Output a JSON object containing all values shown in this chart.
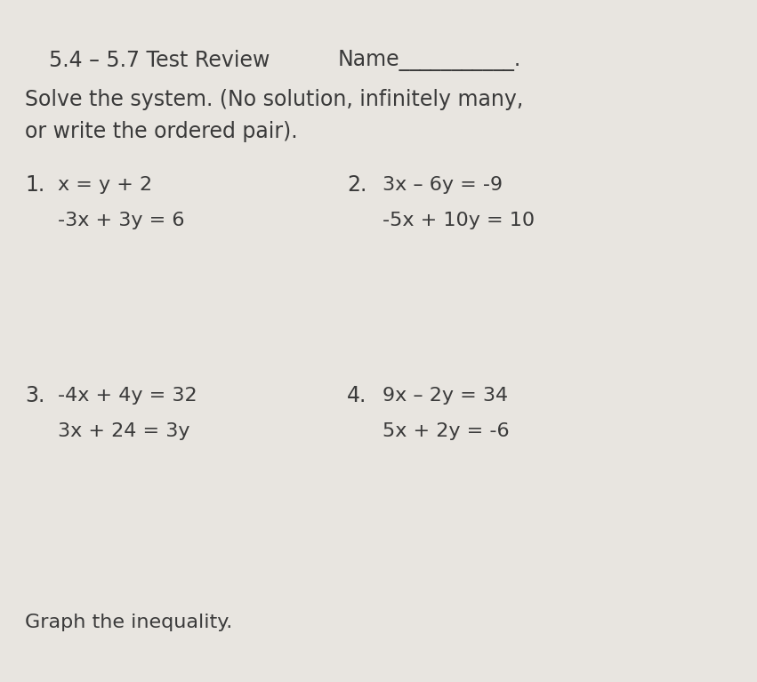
{
  "bg_color": "#e8e5e0",
  "title_part1": "5.4 – 5.7 Test Review",
  "title_part2": "Name___________.",
  "subtitle1": "Solve the system. (No solution, infinitely many,",
  "subtitle2": "or write the ordered pair).",
  "prob1_label": "1.",
  "prob1_eq1": "x = y + 2",
  "prob1_eq2": "-3x + 3y = 6",
  "prob2_label": "2.",
  "prob2_eq1": "3x – 6y = -9",
  "prob2_eq2": "-5x + 10y = 10",
  "prob3_label": "3.",
  "prob3_eq1": "-4x + 4y = 32",
  "prob3_eq2": "3x + 24 = 3y",
  "prob4_label": "4.",
  "prob4_eq1": "9x – 2y = 34",
  "prob4_eq2": "5x + 2y = -6",
  "footer": "Graph the inequality.",
  "text_color": "#3a3a3a",
  "font_size_title": 17,
  "font_size_body": 17,
  "font_size_label": 17,
  "font_size_eq": 16,
  "font_size_footer": 16
}
